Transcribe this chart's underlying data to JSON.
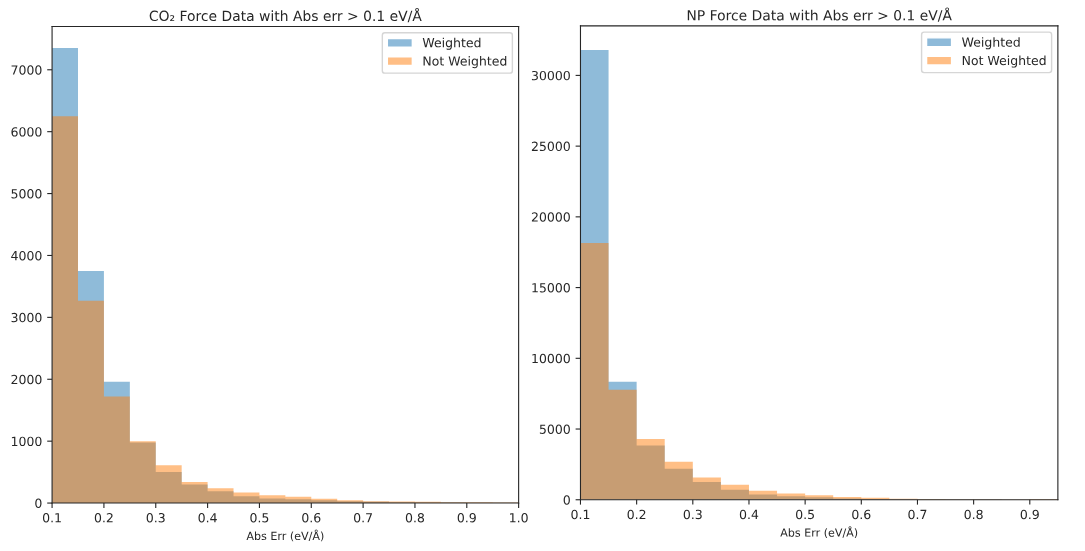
{
  "chart_data": [
    {
      "type": "histogram",
      "title": "CO₂ Force Data with Abs err > 0.1 eV/Å",
      "xlabel": "Abs Err (eV/Å)",
      "bins": [
        0.1,
        0.15,
        0.2,
        0.25,
        0.3,
        0.35,
        0.4,
        0.45,
        0.5,
        0.55,
        0.6,
        0.65,
        0.7,
        0.75,
        0.8,
        0.85,
        0.9,
        0.95,
        1.0
      ],
      "series": [
        {
          "name": "Weighted",
          "color": "#1f77b4",
          "values": [
            7350,
            3750,
            1960,
            980,
            500,
            300,
            190,
            110,
            75,
            60,
            45,
            30,
            20,
            15,
            10,
            8,
            5,
            5
          ]
        },
        {
          "name": "Not Weighted",
          "color": "#ff7f0e",
          "values": [
            6250,
            3270,
            1720,
            1000,
            610,
            340,
            240,
            170,
            125,
            100,
            70,
            45,
            30,
            25,
            20,
            15,
            12,
            10
          ]
        }
      ],
      "xlim": [
        0.1,
        1.0
      ],
      "xticks": [
        0.1,
        0.2,
        0.3,
        0.4,
        0.5,
        0.6,
        0.7,
        0.8,
        0.9,
        {
          "value": 1.0,
          "label": "1.0"
        }
      ],
      "ylim": [
        0,
        7700
      ],
      "yticks": [
        0,
        1000,
        2000,
        3000,
        4000,
        5000,
        6000,
        7000
      ],
      "legend": "top right",
      "grid": false
    },
    {
      "type": "histogram",
      "title": "NP Force Data with Abs err > 0.1 eV/Å",
      "xlabel": "Abs Err (eV/Å)",
      "bins": [
        0.1,
        0.15,
        0.2,
        0.25,
        0.3,
        0.35,
        0.4,
        0.45,
        0.5,
        0.55,
        0.6,
        0.65,
        0.7,
        0.75,
        0.8,
        0.85,
        0.9,
        0.95
      ],
      "series": [
        {
          "name": "Weighted",
          "color": "#1f77b4",
          "values": [
            31800,
            8350,
            3840,
            2190,
            1250,
            710,
            380,
            240,
            170,
            90,
            50,
            30,
            20,
            15,
            10,
            5,
            5
          ]
        },
        {
          "name": "Not Weighted",
          "color": "#ff7f0e",
          "values": [
            18150,
            7780,
            4290,
            2690,
            1580,
            1060,
            640,
            450,
            310,
            190,
            140,
            80,
            60,
            40,
            30,
            20,
            50
          ]
        }
      ],
      "xlim": [
        0.1,
        0.95
      ],
      "xticks": [
        0.1,
        0.2,
        0.3,
        0.4,
        0.5,
        0.6,
        0.7,
        0.8,
        0.9
      ],
      "ylim": [
        0,
        33500
      ],
      "yticks": [
        0,
        5000,
        10000,
        15000,
        20000,
        25000,
        30000
      ],
      "legend": "top right",
      "grid": false
    }
  ]
}
